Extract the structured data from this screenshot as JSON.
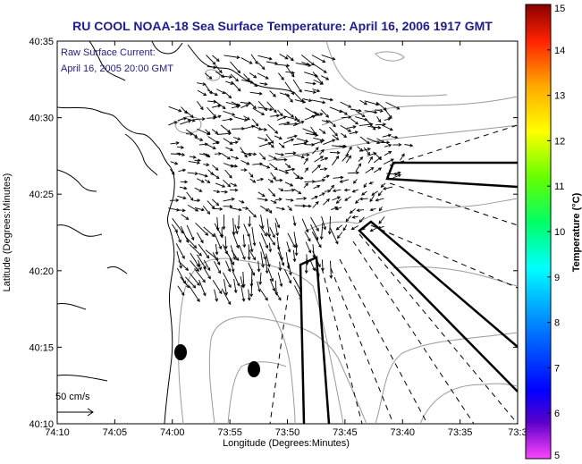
{
  "title": "RU COOL  NOAA-18  Sea Surface Temperature:  April 16, 2006 1917 GMT",
  "annotation": {
    "line1": "Raw Surface Current:",
    "line2": "April 16, 2005 20:00 GMT"
  },
  "x_axis": {
    "label": "Longitude (Degrees:Minutes)",
    "ticks": [
      "74:10",
      "74:05",
      "74:00",
      "73:55",
      "73:50",
      "73:45",
      "73:40",
      "73:35",
      "73:3"
    ]
  },
  "y_axis": {
    "label": "Latitude (Degrees:Minutes)",
    "ticks": [
      "40:35",
      "40:30",
      "40:25",
      "40:20",
      "40:15",
      "40:10"
    ]
  },
  "scale_arrow_label": "50 cm/s",
  "colorbar": {
    "label": "Temperature (°C)",
    "ticks": [
      "15",
      "14",
      "13",
      "12",
      "11",
      "10",
      "9",
      "8",
      "7",
      "6",
      "5"
    ],
    "colors": [
      "#ff44ff",
      "#5a00c8",
      "#0000ff",
      "#0088ff",
      "#00ffff",
      "#00ff66",
      "#66ff00",
      "#ffff00",
      "#ffaa00",
      "#ff2200",
      "#8a0000"
    ]
  }
}
